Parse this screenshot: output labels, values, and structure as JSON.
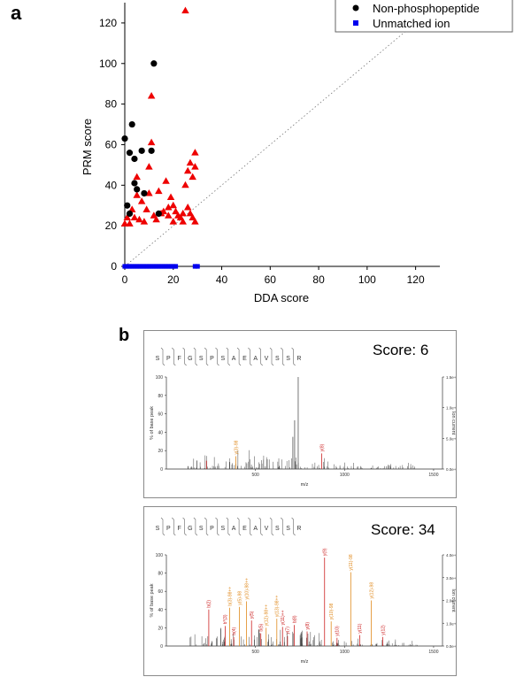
{
  "panel_a": {
    "letter": "a",
    "legend": [
      {
        "label": "Non-phosphopeptide",
        "color": "#000000",
        "marker": "circle"
      },
      {
        "label": "Unmatched ion",
        "color": "#0000ee",
        "marker": "square"
      }
    ]
  },
  "panel_b": {
    "letter": "b"
  },
  "chart_data": [
    {
      "type": "scatter",
      "title": "",
      "xlabel": "DDA score",
      "ylabel": "PRM score",
      "xlim": [
        0,
        130
      ],
      "ylim": [
        0,
        130
      ],
      "xticks": [
        "0",
        "20",
        "40",
        "60",
        "80",
        "100",
        "120"
      ],
      "yticks": [
        "0",
        "20",
        "40",
        "60",
        "80",
        "100",
        "120"
      ],
      "reference_line": "y = x (dotted)",
      "grid": false,
      "legend_position": "top-right",
      "series": [
        {
          "name": "Non-phosphopeptide",
          "marker": "circle",
          "color": "#000000",
          "points": [
            [
              0,
              63
            ],
            [
              1,
              30
            ],
            [
              2,
              56
            ],
            [
              2,
              26
            ],
            [
              3,
              70
            ],
            [
              4,
              41
            ],
            [
              4,
              53
            ],
            [
              5,
              38
            ],
            [
              7,
              57
            ],
            [
              8,
              36
            ],
            [
              11,
              57
            ],
            [
              12,
              100
            ],
            [
              14,
              26
            ]
          ]
        },
        {
          "name": "",
          "marker": "triangle",
          "color": "#ee0000",
          "points": [
            [
              0,
              21
            ],
            [
              1,
              24
            ],
            [
              2,
              21
            ],
            [
              3,
              28
            ],
            [
              4,
              24
            ],
            [
              5,
              35
            ],
            [
              5,
              44
            ],
            [
              6,
              23
            ],
            [
              7,
              32
            ],
            [
              8,
              22
            ],
            [
              9,
              28
            ],
            [
              10,
              49
            ],
            [
              10,
              36
            ],
            [
              11,
              84
            ],
            [
              11,
              61
            ],
            [
              12,
              25
            ],
            [
              13,
              23
            ],
            [
              14,
              37
            ],
            [
              15,
              26
            ],
            [
              16,
              27
            ],
            [
              17,
              42
            ],
            [
              18,
              29
            ],
            [
              18,
              25
            ],
            [
              19,
              34
            ],
            [
              20,
              30
            ],
            [
              20,
              22
            ],
            [
              21,
              27
            ],
            [
              22,
              25
            ],
            [
              23,
              24
            ],
            [
              24,
              26
            ],
            [
              24,
              22
            ],
            [
              25,
              126
            ],
            [
              25,
              40
            ],
            [
              26,
              29
            ],
            [
              26,
              47
            ],
            [
              27,
              51
            ],
            [
              27,
              26
            ],
            [
              28,
              44
            ],
            [
              28,
              24
            ],
            [
              29,
              49
            ],
            [
              29,
              56
            ],
            [
              29,
              22
            ]
          ]
        },
        {
          "name": "Unmatched ion",
          "marker": "square",
          "color": "#0000ee",
          "points": [
            [
              0,
              0
            ],
            [
              1,
              0
            ],
            [
              2,
              0
            ],
            [
              3,
              0
            ],
            [
              4,
              0
            ],
            [
              5,
              0
            ],
            [
              6,
              0
            ],
            [
              7,
              0
            ],
            [
              8,
              0
            ],
            [
              9,
              0
            ],
            [
              10,
              0
            ],
            [
              11,
              0
            ],
            [
              12,
              0
            ],
            [
              13,
              0
            ],
            [
              14,
              0
            ],
            [
              15,
              0
            ],
            [
              16,
              0
            ],
            [
              17,
              0
            ],
            [
              18,
              0
            ],
            [
              19,
              0
            ],
            [
              20,
              0
            ],
            [
              21,
              0
            ],
            [
              29,
              0
            ],
            [
              30,
              0
            ]
          ]
        }
      ]
    },
    {
      "type": "bar",
      "title": "",
      "peptide": [
        "S",
        "P",
        "F",
        "G",
        "S",
        "P",
        "S",
        "A",
        "E",
        "A",
        "V",
        "S",
        "S",
        "R"
      ],
      "score_label": "Score: 6",
      "xlabel": "m/z",
      "ylabel": "% of base peak",
      "y2label": "Ion current",
      "xticks": [
        "500",
        "1000",
        "1500"
      ],
      "yticks": [
        "0",
        "20",
        "40",
        "60",
        "80",
        "100"
      ],
      "y2ticks": [
        "0.0e+0",
        "5.0e+4",
        "1.0e+5",
        "1.5e+5"
      ],
      "peaks": [
        {
          "mz": 390,
          "intensity": 14,
          "label": "y(3)-98",
          "color": "#e08a1e"
        },
        {
          "mz": 872,
          "intensity": 17,
          "label": "y(8)",
          "color": "#cc2222"
        },
        {
          "mz": 225,
          "intensity": 9,
          "label": "",
          "color": "#cc2222"
        },
        {
          "mz": 740,
          "intensity": 100,
          "label": "",
          "color": "#555555"
        },
        {
          "mz": 720,
          "intensity": 53,
          "label": "",
          "color": "#555555"
        },
        {
          "mz": 710,
          "intensity": 35,
          "label": "",
          "color": "#555555"
        }
      ]
    },
    {
      "type": "bar",
      "title": "",
      "peptide": [
        "S",
        "P",
        "F",
        "G",
        "S",
        "P",
        "S",
        "A",
        "E",
        "A",
        "V",
        "S",
        "S",
        "R"
      ],
      "score_label": "Score: 34",
      "xlabel": "m/z",
      "ylabel": "% of base peak",
      "y2label": "Ion current",
      "xticks": [
        "500",
        "1000",
        "1500"
      ],
      "yticks": [
        "0",
        "20",
        "40",
        "60",
        "80",
        "100"
      ],
      "y2ticks": [
        "0.0e+0",
        "1.0e+4",
        "2.0e+4",
        "3.0e+4",
        "4.0e+4"
      ],
      "peaks": [
        {
          "mz": 238,
          "intensity": 40,
          "label": "b(2)",
          "color": "#cc2222"
        },
        {
          "mz": 330,
          "intensity": 22,
          "label": "b*(3)",
          "color": "#cc2222"
        },
        {
          "mz": 355,
          "intensity": 42,
          "label": "b(3)-98++",
          "color": "#e08a1e"
        },
        {
          "mz": 378,
          "intensity": 10,
          "label": "b(4)",
          "color": "#cc2222"
        },
        {
          "mz": 410,
          "intensity": 43,
          "label": "y(5)-98",
          "color": "#e08a1e"
        },
        {
          "mz": 450,
          "intensity": 49,
          "label": "y(10)-98++",
          "color": "#e08a1e"
        },
        {
          "mz": 478,
          "intensity": 28,
          "label": "y(5)",
          "color": "#cc2222"
        },
        {
          "mz": 530,
          "intensity": 14,
          "label": "b(5)",
          "color": "#cc2222"
        },
        {
          "mz": 560,
          "intensity": 20,
          "label": "y(12)-98++",
          "color": "#e08a1e"
        },
        {
          "mz": 620,
          "intensity": 30,
          "label": "y(13)-98++",
          "color": "#e08a1e"
        },
        {
          "mz": 652,
          "intensity": 21,
          "label": "y(11)++",
          "color": "#cc2222"
        },
        {
          "mz": 680,
          "intensity": 11,
          "label": "y(7)",
          "color": "#cc2222"
        },
        {
          "mz": 718,
          "intensity": 23,
          "label": "b(8)",
          "color": "#cc2222"
        },
        {
          "mz": 790,
          "intensity": 16,
          "label": "y(8)",
          "color": "#cc2222"
        },
        {
          "mz": 888,
          "intensity": 97,
          "label": "y(9)",
          "color": "#cc2222"
        },
        {
          "mz": 925,
          "intensity": 27,
          "label": "y(10)-98",
          "color": "#e08a1e"
        },
        {
          "mz": 958,
          "intensity": 9,
          "label": "y(10)",
          "color": "#cc2222"
        },
        {
          "mz": 1035,
          "intensity": 81,
          "label": "y(11)-98",
          "color": "#e08a1e"
        },
        {
          "mz": 1085,
          "intensity": 12,
          "label": "y(11)",
          "color": "#cc2222"
        },
        {
          "mz": 1150,
          "intensity": 50,
          "label": "y(12)-98",
          "color": "#e08a1e"
        },
        {
          "mz": 1215,
          "intensity": 10,
          "label": "y(12)",
          "color": "#cc2222"
        }
      ]
    }
  ]
}
